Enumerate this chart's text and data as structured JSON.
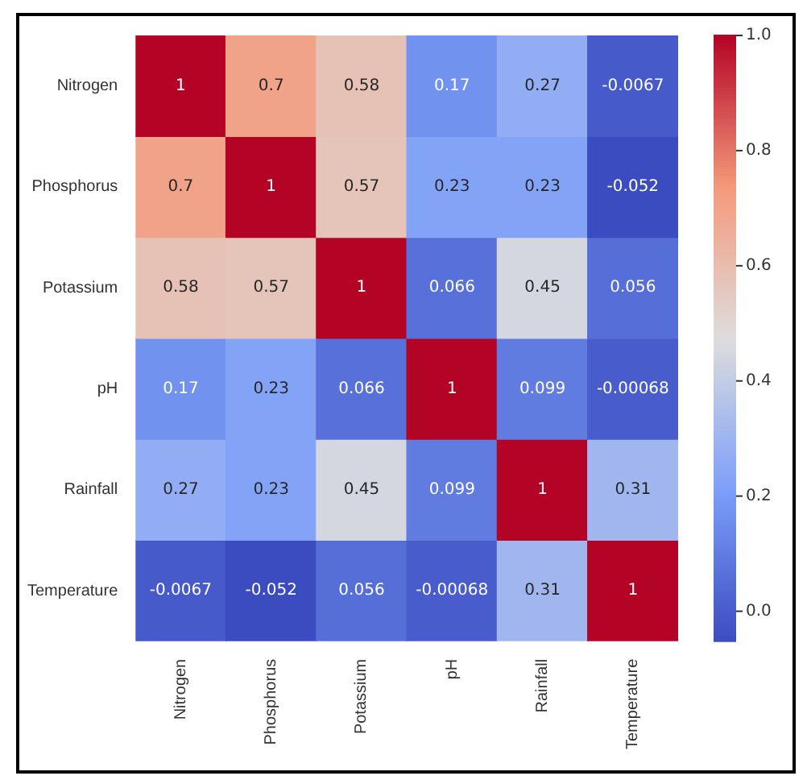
{
  "chart_data": {
    "type": "heatmap",
    "categories": [
      "Nitrogen",
      "Phosphorus",
      "Potassium",
      "pH",
      "Rainfall",
      "Temperature"
    ],
    "y_categories": [
      "Nitrogen",
      "Phosphorus",
      "Potassium",
      "pH",
      "Rainfall",
      "Temperature"
    ],
    "cells": [
      [
        1,
        0.7,
        0.58,
        0.17,
        0.27,
        -0.0067
      ],
      [
        0.7,
        1,
        0.57,
        0.23,
        0.23,
        -0.052
      ],
      [
        0.58,
        0.57,
        1,
        0.066,
        0.45,
        0.056
      ],
      [
        0.17,
        0.23,
        0.066,
        1,
        0.099,
        -0.00068
      ],
      [
        0.27,
        0.23,
        0.45,
        0.099,
        1,
        0.31
      ],
      [
        -0.0067,
        -0.052,
        0.056,
        -0.00068,
        0.31,
        1
      ]
    ],
    "clim": [
      -0.052,
      1
    ],
    "cticks": [
      {
        "value": 0,
        "label": "0.0"
      },
      {
        "value": 0.2,
        "label": "0.2"
      },
      {
        "value": 0.4,
        "label": "0.4"
      },
      {
        "value": 0.6,
        "label": "0.6"
      },
      {
        "value": 0.8,
        "label": "0.8"
      },
      {
        "value": 1,
        "label": "1.0"
      }
    ],
    "data_labels": true
  }
}
